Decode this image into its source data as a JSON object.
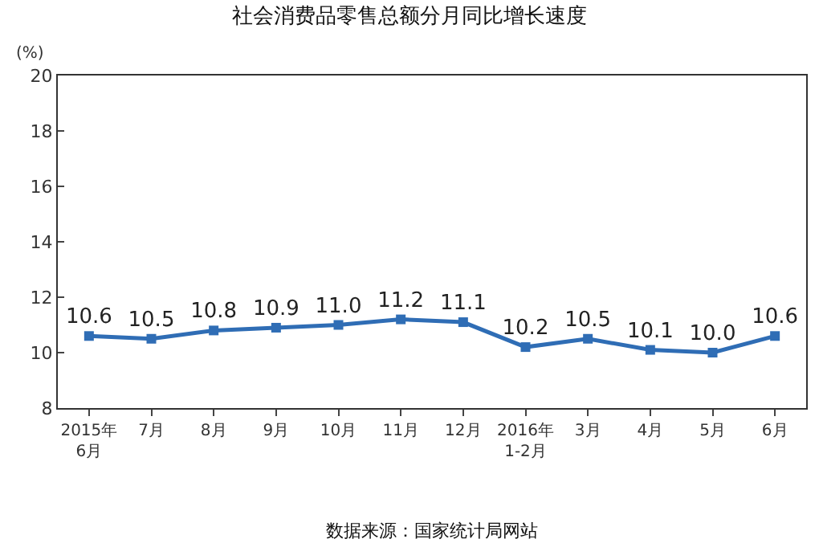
{
  "chart_data": {
    "type": "line",
    "title": "社会消费品零售总额分月同比增长速度",
    "ylabel": "(%)",
    "categories": [
      "2015年\n6月",
      "7月",
      "8月",
      "9月",
      "10月",
      "11月",
      "12月",
      "2016年\n1-2月",
      "3月",
      "4月",
      "5月",
      "6月"
    ],
    "series": [
      {
        "color": "#2f6db5",
        "values": [
          10.6,
          10.5,
          10.8,
          10.9,
          11.0,
          11.2,
          11.1,
          10.2,
          10.5,
          10.1,
          10.0,
          10.6
        ]
      }
    ],
    "value_labels": [
      "10.6",
      "10.5",
      "10.8",
      "10.9",
      "11.0",
      "11.2",
      "11.1",
      "10.2",
      "10.5",
      "10.1",
      "10.0",
      "10.6"
    ],
    "ylim": [
      8,
      20
    ],
    "yticks": [
      8,
      10,
      12,
      14,
      16,
      18,
      20
    ],
    "marker": "square",
    "line_style": "solid",
    "annotations": [
      "数据来源：国家统计局网站"
    ]
  }
}
